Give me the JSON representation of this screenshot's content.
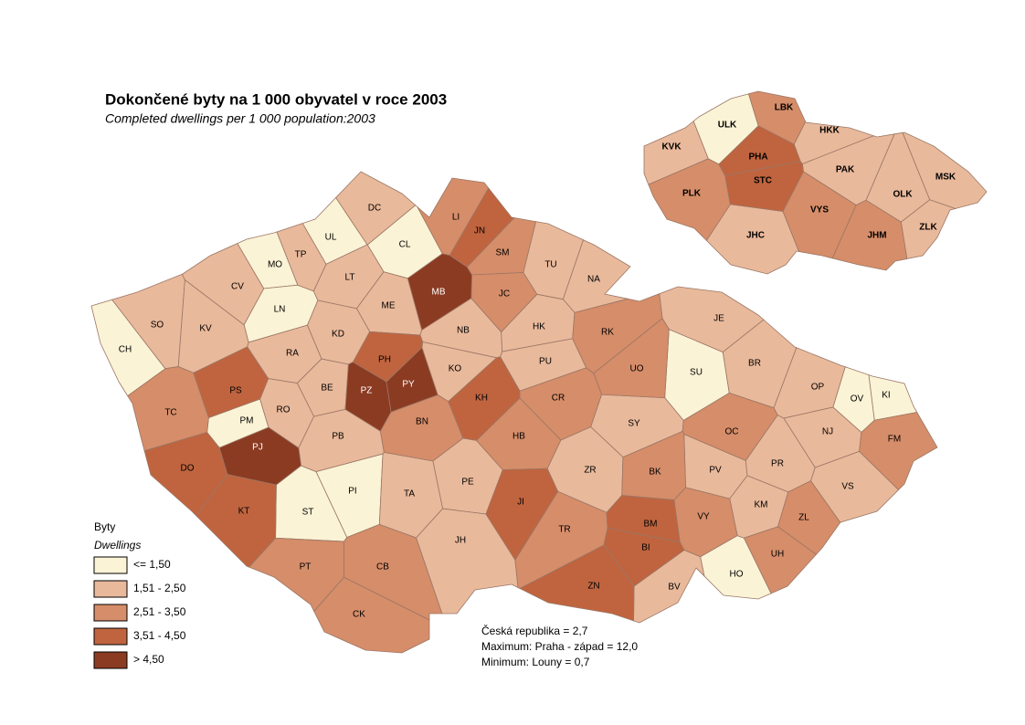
{
  "title": "Dokončené byty na 1 000 obyvatel v roce 2003",
  "subtitle": "Completed dwellings per 1 000 population:2003",
  "legend": {
    "title": "Byty",
    "subtitle": "Dwellings",
    "classes": [
      {
        "label": "<= 1,50",
        "color": "#fbf3d6",
        "districts": [
          "CH",
          "MO",
          "UL",
          "CL",
          "LN",
          "PM",
          "SU",
          "KI",
          "OV",
          "ST",
          "PI",
          "HO"
        ],
        "regions": [
          "ULK"
        ]
      },
      {
        "label": "1,51 - 2,50",
        "color": "#e9b99b",
        "districts": [
          "SO",
          "KV",
          "CV",
          "TP",
          "DC",
          "TU",
          "NA",
          "LT",
          "ME",
          "KD",
          "RA",
          "NB",
          "HK",
          "KO",
          "PU",
          "BE",
          "RO",
          "PB",
          "SY",
          "JE",
          "BR",
          "OP",
          "NJ",
          "TA",
          "PE",
          "ZR",
          "PV",
          "PR",
          "KM",
          "VS",
          "JH",
          "BV"
        ],
        "regions": [
          "HKK",
          "KVK",
          "PAK",
          "MSK",
          "OLK",
          "ZLK",
          "JHC"
        ]
      },
      {
        "label": "2,51 - 3,50",
        "color": "#d68d69",
        "districts": [
          "LI",
          "SM",
          "JC",
          "RK",
          "UO",
          "CR",
          "TC",
          "BN",
          "HB",
          "OC",
          "FM",
          "BK",
          "ZL",
          "VY",
          "TR",
          "UH",
          "PT",
          "CB",
          "CK"
        ],
        "regions": [
          "LBK",
          "PLK",
          "VYS",
          "JHM"
        ]
      },
      {
        "label": "3,51 - 4,50",
        "color": "#c0643f",
        "districts": [
          "JN",
          "PH",
          "KH",
          "PS",
          "DO",
          "KT",
          "JI",
          "BM",
          "BI",
          "ZN"
        ],
        "regions": [
          "PHA",
          "STC"
        ]
      },
      {
        "label": "> 4,50",
        "color": "#8b3b22",
        "districts": [
          "MB",
          "PZ",
          "PY",
          "PJ"
        ],
        "regions": []
      }
    ]
  },
  "notes": [
    "Česká republika =  2,7",
    "Maximum: Praha - západ =  12,0",
    "Minimum: Louny  = 0,7"
  ]
}
